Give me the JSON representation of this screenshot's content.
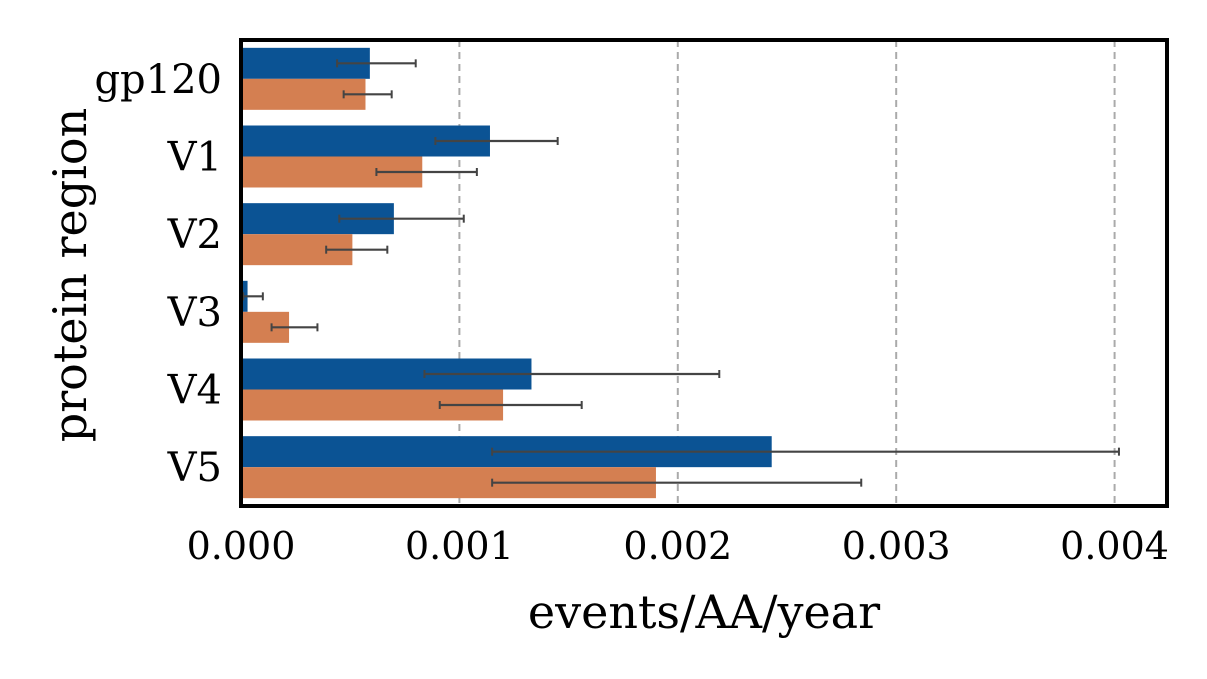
{
  "chart_data": {
    "type": "bar",
    "orientation": "horizontal",
    "categories": [
      "gp120",
      "V1",
      "V2",
      "V3",
      "V4",
      "V5"
    ],
    "series": [
      {
        "values": [
          0.00059,
          0.00114,
          0.0007,
          3e-05,
          0.00133,
          0.00243
        ],
        "error_low": [
          0.00044,
          0.00089,
          0.00045,
          1e-05,
          0.00084,
          0.00115
        ],
        "error_high": [
          0.0008,
          0.00145,
          0.00102,
          0.0001,
          0.00219,
          0.00402
        ],
        "color": "#0b5394"
      },
      {
        "values": [
          0.00057,
          0.00083,
          0.00051,
          0.00022,
          0.0012,
          0.0019
        ],
        "error_low": [
          0.00047,
          0.00062,
          0.00039,
          0.00014,
          0.00091,
          0.00115
        ],
        "error_high": [
          0.00069,
          0.00108,
          0.00067,
          0.00035,
          0.00156,
          0.00284
        ],
        "color": "#d47f51"
      }
    ],
    "xlabel": "events/AA/year",
    "ylabel": "protein region",
    "xlim": [
      0,
      0.00424
    ],
    "xticks": [
      0.0,
      0.001,
      0.002,
      0.003,
      0.004
    ],
    "xtick_labels": [
      "0.000",
      "0.001",
      "0.002",
      "0.003",
      "0.004"
    ],
    "grid": "vertical dashed",
    "legend": "none",
    "errorbar_color": "#444444",
    "grid_color": "#aaaaaa"
  }
}
